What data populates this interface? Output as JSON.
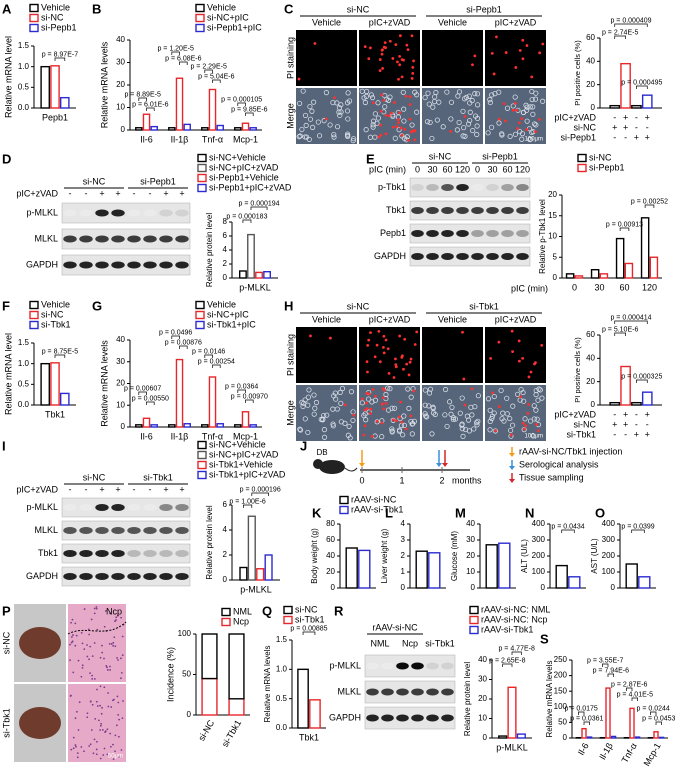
{
  "panels": [
    {
      "label": "A",
      "chart": {
        "type": "bar",
        "ylabel": "Relative mRNA level",
        "ylim": [
          0,
          1.5
        ],
        "yticks": [
          {
            "value": 0,
            "label": "0.0"
          },
          0.5,
          {
            "value": 1,
            "label": "1.0"
          },
          1.5
        ],
        "categories": [
          "Pepb1"
        ],
        "series": [
          {
            "name": "Vehicle",
            "color": "#000000",
            "values": [
              1.0
            ]
          },
          {
            "name": "si-NC",
            "color": "#e8262a",
            "values": [
              1.02
            ]
          },
          {
            "name": "si-Pepb1",
            "color": "#2b2bd1",
            "values": [
              0.25
            ]
          }
        ],
        "pvalues": [
          "p = 8.97E-7"
        ]
      }
    },
    {
      "label": "B",
      "chart": {
        "type": "bar",
        "ylabel": "Relative mRNA levels",
        "ylim": [
          0,
          40
        ],
        "yticks": [
          0,
          10,
          20,
          30,
          40
        ],
        "categories": [
          "Il-6",
          "Il-1β",
          "Tnf-α",
          "Mcp-1"
        ],
        "series": [
          {
            "name": "Vehicle",
            "color": "#000000",
            "values": [
              1,
              1,
              1,
              1
            ]
          },
          {
            "name": "si-NC+pIC",
            "color": "#e8262a",
            "values": [
              7,
              23,
              18,
              3
            ]
          },
          {
            "name": "si-Pepb1+pIC",
            "color": "#2b2bd1",
            "values": [
              1.5,
              2.5,
              2,
              1
            ]
          }
        ],
        "pvalues": [
          "p = 8.89E-5",
          "p = 6.01E-6",
          "p = 1.20E-5",
          "p = 6.08E-6",
          "p = 2.29E-5",
          "p = 5.04E-6",
          "p = 0.000105",
          "p = 9.85E-6"
        ]
      }
    },
    {
      "label": "C",
      "images": {
        "groups": [
          "si-NC",
          "si-Pepb1"
        ],
        "columns": [
          "Vehicle",
          "pIC+zVAD",
          "Vehicle",
          "pIC+zVAD"
        ],
        "rows": [
          "PI staining",
          "Merge"
        ],
        "scale": "100μm"
      },
      "chart": {
        "type": "bar",
        "ylabel": "PI positive cells (%)",
        "ylim": [
          0,
          60
        ],
        "yticks": [
          0,
          20,
          40,
          60
        ],
        "series": [
          {
            "color": "#000000",
            "values": [
              2
            ]
          },
          {
            "color": "#e8262a",
            "values": [
              38
            ]
          },
          {
            "color": "#000000",
            "values": [
              2
            ]
          },
          {
            "color": "#2b2bd1",
            "values": [
              11
            ]
          }
        ],
        "pvalues": [
          "p = 0.000409",
          "p = 2.74E-5",
          "p = 0.000495"
        ],
        "conditions": [
          {
            "name": "pIC+zVAD",
            "marks": [
              "-",
              "+",
              "-",
              "+"
            ]
          },
          {
            "name": "si-NC",
            "marks": [
              "+",
              "+",
              "-",
              "-"
            ]
          },
          {
            "name": "si-Pepb1",
            "marks": [
              "-",
              "-",
              "+",
              "+"
            ]
          }
        ]
      }
    },
    {
      "label": "D",
      "blot": {
        "headers": [
          "si-NC",
          "si-Pepb1"
        ],
        "treatment": {
          "name": "pIC+zVAD",
          "marks": [
            "-",
            "-",
            "+",
            "+",
            "-",
            "-",
            "+",
            "+"
          ]
        },
        "rows": [
          "p-MLKL",
          "MLKL",
          "GAPDH"
        ]
      },
      "chart": {
        "type": "bar",
        "ylabel": "Relative protein level",
        "ylim": [
          0,
          8
        ],
        "yticks": [
          0,
          2,
          4,
          6,
          8
        ],
        "categories": [
          "p-MLKL"
        ],
        "series": [
          {
            "name": "si-NC+Vehicle",
            "color": "#000000",
            "values": [
              1
            ]
          },
          {
            "name": "si-NC+pIC+zVAD",
            "color": "#555555",
            "values": [
              6.2
            ]
          },
          {
            "name": "si-Pepb1+Vehicle",
            "color": "#e8262a",
            "values": [
              0.8
            ]
          },
          {
            "name": "si-Pepb1+pIC+zVAD",
            "color": "#2b2bd1",
            "values": [
              0.9
            ]
          }
        ],
        "pvalues": [
          "p = 0.000194",
          "p = 0.000183"
        ]
      }
    },
    {
      "label": "E",
      "blot": {
        "headers": [
          "si-NC",
          "si-Pepb1"
        ],
        "treatment": {
          "name": "pIC (min)",
          "marks": [
            "0",
            "30",
            "60",
            "120",
            "0",
            "30",
            "60",
            "120"
          ]
        },
        "rows": [
          "p-Tbk1",
          "Tbk1",
          "Pepb1",
          "GAPDH"
        ]
      },
      "chart": {
        "type": "bar",
        "ylabel": "Relative p-Tbk1 level",
        "xlabel": "pIC (min)",
        "ylim": [
          0,
          20
        ],
        "yticks": [
          0,
          5,
          10,
          15,
          20
        ],
        "categories": [
          "0",
          "30",
          "60",
          "120"
        ],
        "series": [
          {
            "name": "si-NC",
            "color": "#000000",
            "values": [
              1,
              2,
              9.5,
              14.5
            ]
          },
          {
            "name": "si-Pepb1",
            "color": "#e8262a",
            "values": [
              0.5,
              1,
              3.5,
              5
            ]
          }
        ],
        "pvalues": [
          "p = 0.00913",
          "p = 0.00252"
        ]
      }
    },
    {
      "label": "F",
      "chart": {
        "type": "bar",
        "ylabel": "Relative mRNA level",
        "ylim": [
          0,
          1.5
        ],
        "yticks": [
          {
            "value": 0,
            "label": "0.0"
          },
          0.5,
          {
            "value": 1,
            "label": "1.0"
          },
          1.5
        ],
        "categories": [
          "Tbk1"
        ],
        "series": [
          {
            "name": "Vehicle",
            "color": "#000000",
            "values": [
              1.0
            ]
          },
          {
            "name": "si-NC",
            "color": "#e8262a",
            "values": [
              1.02
            ]
          },
          {
            "name": "si-Tbk1",
            "color": "#2b2bd1",
            "values": [
              0.28
            ]
          }
        ],
        "pvalues": [
          "p = 8.75E-5"
        ]
      }
    },
    {
      "label": "G",
      "chart": {
        "type": "bar",
        "ylabel": "Relative mRNA levels",
        "ylim": [
          0,
          40
        ],
        "yticks": [
          0,
          10,
          20,
          30,
          40
        ],
        "categories": [
          "Il-6",
          "Il-1β",
          "Tnf-α",
          "Mcp-1"
        ],
        "series": [
          {
            "name": "Vehicle",
            "color": "#000000",
            "values": [
              1,
              1,
              1,
              1
            ]
          },
          {
            "name": "si-NC+pIC",
            "color": "#e8262a",
            "values": [
              4,
              31,
              23,
              7
            ]
          },
          {
            "name": "si-Tbk1+pIC",
            "color": "#2b2bd1",
            "values": [
              1,
              1.5,
              1.5,
              1
            ]
          }
        ],
        "pvalues": [
          "p = 0.00607",
          "p = 0.00550",
          "p = 0.0496",
          "p = 0.00876",
          "p = 0.0146",
          "p = 0.00254",
          "p = 0.0364",
          "p = 0.00970"
        ]
      }
    },
    {
      "label": "H",
      "images": {
        "groups": [
          "si-NC",
          "si-Tbk1"
        ],
        "columns": [
          "Vehicle",
          "pIC+zVAD",
          "Vehicle",
          "pIC+zVAD"
        ],
        "rows": [
          "PI staining",
          "Merge"
        ],
        "scale": "100μm"
      },
      "chart": {
        "type": "bar",
        "ylabel": "PI positive cells (%)",
        "ylim": [
          0,
          60
        ],
        "yticks": [
          0,
          20,
          40,
          60
        ],
        "series": [
          {
            "color": "#000000",
            "values": [
              2
            ]
          },
          {
            "color": "#e8262a",
            "values": [
              33
            ]
          },
          {
            "color": "#000000",
            "values": [
              2
            ]
          },
          {
            "color": "#2b2bd1",
            "values": [
              11
            ]
          }
        ],
        "pvalues": [
          "p = 0.000414",
          "p = 5.10E-6",
          "p = 0.000325"
        ],
        "conditions": [
          {
            "name": "pIC+zVAD",
            "marks": [
              "-",
              "+",
              "-",
              "+"
            ]
          },
          {
            "name": "si-NC",
            "marks": [
              "+",
              "+",
              "-",
              "-"
            ]
          },
          {
            "name": "si-Tbk1",
            "marks": [
              "-",
              "-",
              "+",
              "+"
            ]
          }
        ]
      }
    },
    {
      "label": "I",
      "blot": {
        "headers": [
          "si-NC",
          "si-Tbk1"
        ],
        "treatment": {
          "name": "pIC+zVAD",
          "marks": [
            "-",
            "-",
            "+",
            "+",
            "-",
            "-",
            "+",
            "+"
          ]
        },
        "rows": [
          "p-MLKL",
          "MLKL",
          "Tbk1",
          "GAPDH"
        ]
      },
      "chart": {
        "type": "bar",
        "ylabel": "Relative protein level",
        "ylim": [
          0,
          6
        ],
        "yticks": [
          0,
          2,
          4,
          6
        ],
        "categories": [
          "p-MLKL"
        ],
        "series": [
          {
            "name": "si-NC+Vehicle",
            "color": "#000000",
            "values": [
              1
            ]
          },
          {
            "name": "si-NC+pIC+zVAD",
            "color": "#555555",
            "values": [
              5.1
            ]
          },
          {
            "name": "si-Tbk1+Vehicle",
            "color": "#e8262a",
            "values": [
              0.9
            ]
          },
          {
            "name": "si-Tbk1+pIC+zVAD",
            "color": "#2b2bd1",
            "values": [
              2
            ]
          }
        ],
        "pvalues": [
          "p = 0.000196",
          "p = 1.00E-6"
        ]
      }
    },
    {
      "label": "J",
      "diagram": {
        "group": "DB",
        "timeline": [
          "0",
          "1",
          "2",
          "months"
        ],
        "legend": [
          "rAAV-si-NC/Tbk1 injection",
          "Serological analysis",
          "Tissue sampling"
        ]
      }
    },
    {
      "label": "K",
      "chart": {
        "type": "bar",
        "ylabel": "Body weight (g)",
        "ylim": [
          0,
          80
        ],
        "yticks": [
          0,
          20,
          40,
          60,
          80
        ],
        "series": [
          {
            "name": "rAAV-si-NC",
            "color": "#000000",
            "values": [
              50
            ]
          },
          {
            "name": "rAAV-si-Tbk1",
            "color": "#2b2bd1",
            "values": [
              47
            ]
          }
        ]
      }
    },
    {
      "label": "L",
      "chart": {
        "type": "bar",
        "ylabel": "Liver weight (g)",
        "ylim": [
          0,
          4
        ],
        "yticks": [
          0,
          1,
          2,
          3,
          4
        ],
        "series": [
          {
            "color": "#000000",
            "values": [
              2.3
            ]
          },
          {
            "color": "#2b2bd1",
            "values": [
              2.2
            ]
          }
        ]
      }
    },
    {
      "label": "M",
      "chart": {
        "type": "bar",
        "ylabel": "Glucose (mM)",
        "ylim": [
          0,
          40
        ],
        "yticks": [
          0,
          10,
          20,
          30,
          40
        ],
        "series": [
          {
            "color": "#000000",
            "values": [
              27
            ]
          },
          {
            "color": "#2b2bd1",
            "values": [
              28
            ]
          }
        ]
      }
    },
    {
      "label": "N",
      "chart": {
        "type": "bar",
        "ylabel": "ALT (U/L)",
        "ylim": [
          0,
          400
        ],
        "yticks": [
          0,
          100,
          200,
          300,
          400
        ],
        "series": [
          {
            "color": "#000000",
            "values": [
              140
            ]
          },
          {
            "color": "#2b2bd1",
            "values": [
              70
            ]
          }
        ],
        "pvalues": [
          "p = 0.0434"
        ]
      }
    },
    {
      "label": "O",
      "chart": {
        "type": "bar",
        "ylabel": "AST (U/L)",
        "ylim": [
          0,
          400
        ],
        "yticks": [
          0,
          100,
          200,
          300,
          400
        ],
        "series": [
          {
            "color": "#000000",
            "values": [
              150
            ]
          },
          {
            "color": "#2b2bd1",
            "values": [
              70
            ]
          }
        ],
        "pvalues": [
          "p = 0.0399"
        ]
      }
    },
    {
      "label": "P",
      "images": {
        "rows": [
          "si-NC",
          "si-Tbk1"
        ],
        "annotation": "Ncp",
        "scale": "50μm"
      },
      "chart": {
        "type": "stacked_bar",
        "ylabel": "Incidence (%)",
        "ylim": [
          0,
          100
        ],
        "yticks": [
          0,
          50,
          100
        ],
        "categories": [
          "si-NC",
          "si-Tbk1"
        ],
        "series": [
          {
            "name": "NML",
            "color": "#000000",
            "values": [
              55,
              80
            ]
          },
          {
            "name": "Ncp",
            "color": "#e8262a",
            "values": [
              45,
              20
            ]
          }
        ],
        "stack_order": [
          "Ncp",
          "NML"
        ]
      }
    },
    {
      "label": "Q",
      "chart": {
        "type": "bar",
        "ylabel": "Relative mRNA levels",
        "ylim": [
          0,
          1.5
        ],
        "yticks": [
          {
            "value": 0,
            "label": "0.0"
          },
          0.5,
          {
            "value": 1,
            "label": "1.0"
          },
          1.5
        ],
        "categories": [
          "Tbk1"
        ],
        "series": [
          {
            "name": "si-NC",
            "color": "#000000",
            "values": [
              1
            ]
          },
          {
            "name": "si-Tbk1",
            "color": "#e8262a",
            "values": [
              0.48
            ]
          }
        ],
        "pvalues": [
          "p = 0.00885"
        ]
      }
    },
    {
      "label": "R",
      "blot": {
        "headers": [
          "rAAV-si-NC"
        ],
        "columns": [
          "NML",
          "Ncp",
          "si-Tbk1"
        ],
        "rows": [
          "p-MLKL",
          "MLKL",
          "GAPDH"
        ]
      },
      "chart": {
        "type": "bar",
        "ylabel": "Relative protein level",
        "ylim": [
          0,
          40
        ],
        "yticks": [
          0,
          10,
          20,
          30,
          40
        ],
        "categories": [
          "p-MLKL"
        ],
        "series": [
          {
            "name": "rAAV-si-NC: NML",
            "color": "#000000",
            "values": [
              1
            ]
          },
          {
            "name": "rAAV-si-NC: Ncp",
            "color": "#e8262a",
            "values": [
              26
            ]
          },
          {
            "name": "rAAV-si-Tbk1",
            "color": "#2b2bd1",
            "values": [
              2
            ]
          }
        ],
        "pvalues": [
          "p = 4.77E-8",
          "p = 2.65E-8"
        ]
      }
    },
    {
      "label": "S",
      "chart": {
        "type": "bar",
        "ylabel": "Relative mRNA levels",
        "ylim": [
          0,
          250
        ],
        "yticks": [
          0,
          50,
          100,
          150,
          200,
          250
        ],
        "categories": [
          "Il-6",
          "Il-1β",
          "Tnf-α",
          "Mcp-1"
        ],
        "series": [
          {
            "color": "#000000",
            "values": [
              1,
              1,
              1,
              1
            ]
          },
          {
            "color": "#e8262a",
            "values": [
              30,
              160,
              95,
              20
            ]
          },
          {
            "color": "#2b2bd1",
            "values": [
              3,
              5,
              3,
              2
            ]
          }
        ],
        "pvalues": [
          "p = 0.0175",
          "p = 0.0361",
          "p = 3.55E-7",
          "p = 7.94E-6",
          "p = 2.87E-6",
          "p = 4.01E-5",
          "p = 0.0244",
          "p = 0.0453"
        ]
      }
    }
  ]
}
